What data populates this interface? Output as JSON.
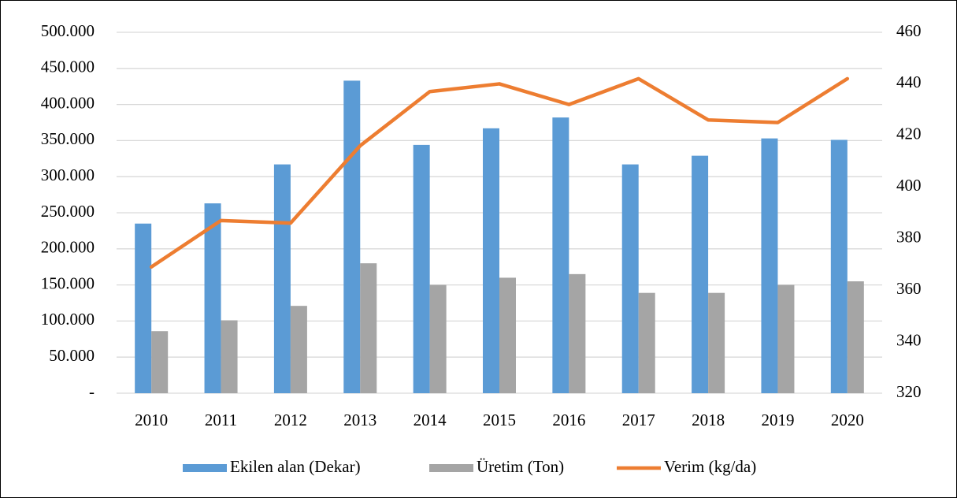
{
  "chart_data": {
    "type": "bar_line",
    "categories": [
      "2010",
      "2011",
      "2012",
      "2013",
      "2014",
      "2015",
      "2016",
      "2017",
      "2018",
      "2019",
      "2020"
    ],
    "series": [
      {
        "name": "Ekilen alan (Dekar)",
        "color": "#5b9bd5",
        "type": "bar",
        "values": [
          235000,
          263000,
          317000,
          433000,
          344000,
          367000,
          382000,
          317000,
          329000,
          353000,
          351000
        ]
      },
      {
        "name": "Üretim (Ton)",
        "color": "#a5a5a5",
        "type": "bar",
        "values": [
          86000,
          101000,
          121000,
          180000,
          150000,
          160000,
          165000,
          139000,
          139000,
          150000,
          155000
        ]
      },
      {
        "name": "Verim (kg/da)",
        "color": "#ed7d31",
        "type": "line",
        "axis": "y2",
        "values": [
          369,
          387,
          386,
          416,
          437,
          440,
          432,
          442,
          426,
          425,
          442
        ]
      }
    ],
    "ylim": [
      0,
      500000
    ],
    "yticks": [
      {
        "value": 0,
        "label": "-"
      },
      {
        "value": 50000,
        "label": "50.000"
      },
      {
        "value": 100000,
        "label": "100.000"
      },
      {
        "value": 150000,
        "label": "150.000"
      },
      {
        "value": 200000,
        "label": "200.000"
      },
      {
        "value": 250000,
        "label": "250.000"
      },
      {
        "value": 300000,
        "label": "300.000"
      },
      {
        "value": 350000,
        "label": "350.000"
      },
      {
        "value": 400000,
        "label": "400.000"
      },
      {
        "value": 450000,
        "label": "450.000"
      },
      {
        "value": 500000,
        "label": "500.000"
      }
    ],
    "y2lim": [
      320,
      460
    ],
    "y2ticks": [
      320,
      340,
      360,
      380,
      400,
      420,
      440,
      460
    ],
    "grid": true,
    "legend": "bottom"
  }
}
